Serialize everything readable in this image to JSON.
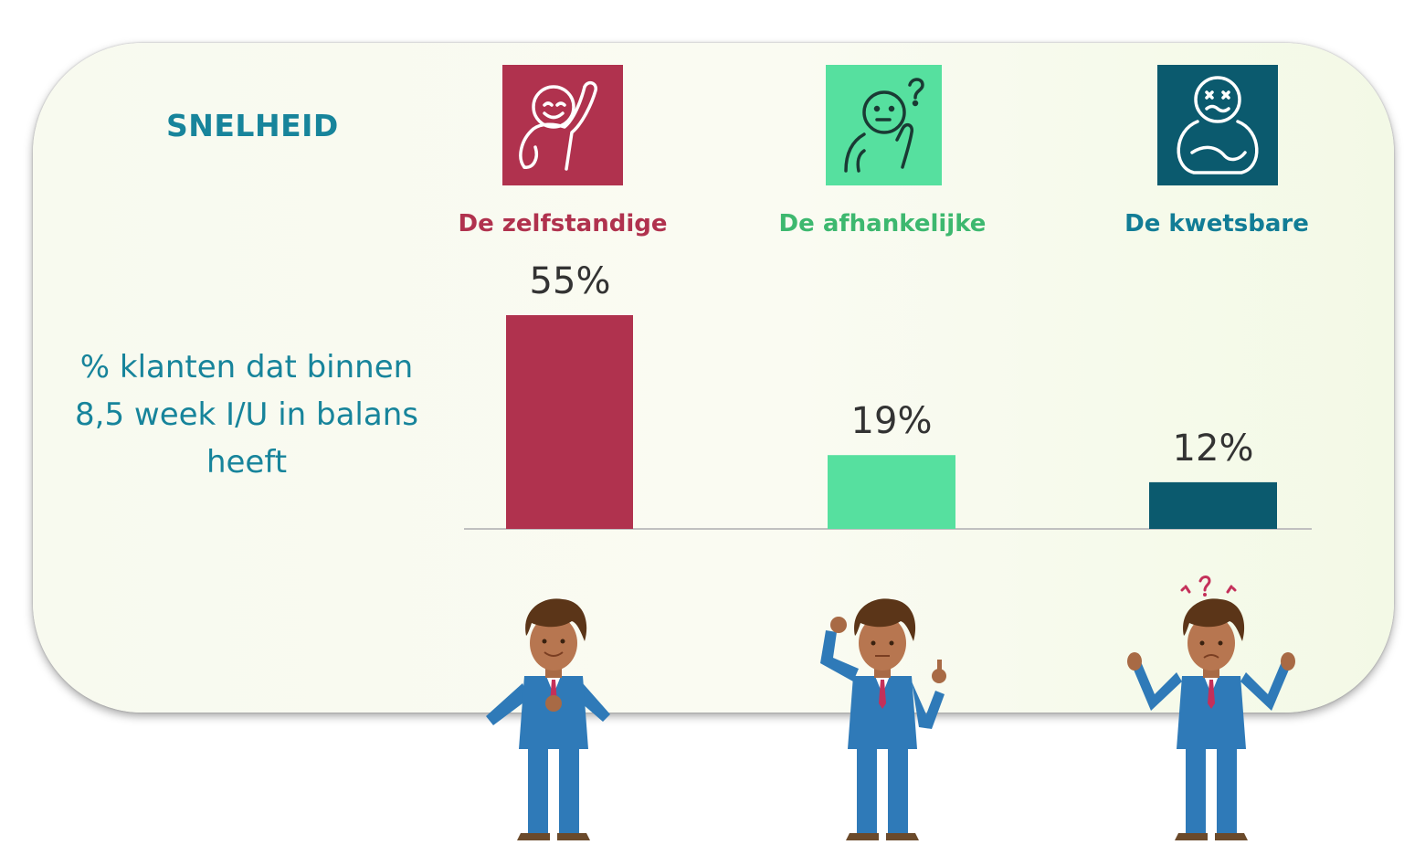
{
  "title": "SNELHEID",
  "ylabel": "% klanten dat binnen 8,5 week I/U in balans heeft",
  "colors": {
    "title": "#17849b",
    "zelfstandige": "#b0324e",
    "afhankelijke": "#56e09f",
    "kwetsbare": "#0b5a6e",
    "afhankelijke_label": "#3db86f",
    "kwetsbare_label": "#127d96",
    "baseline": "#c0c0c0"
  },
  "icons": [
    "waving-smiley-icon",
    "thinking-person-icon",
    "troubled-person-icon"
  ],
  "chart_data": {
    "type": "bar",
    "title": "SNELHEID",
    "ylabel": "% klanten dat binnen 8,5 week I/U in balans heeft",
    "categories": [
      "De zelfstandige",
      "De afhankelijke",
      "De kwetsbare"
    ],
    "values": [
      55,
      19,
      12
    ],
    "value_labels": [
      "55%",
      "19%",
      "12%"
    ],
    "unit": "%",
    "ylim": [
      0,
      55
    ],
    "grid": false,
    "legend": "none"
  }
}
